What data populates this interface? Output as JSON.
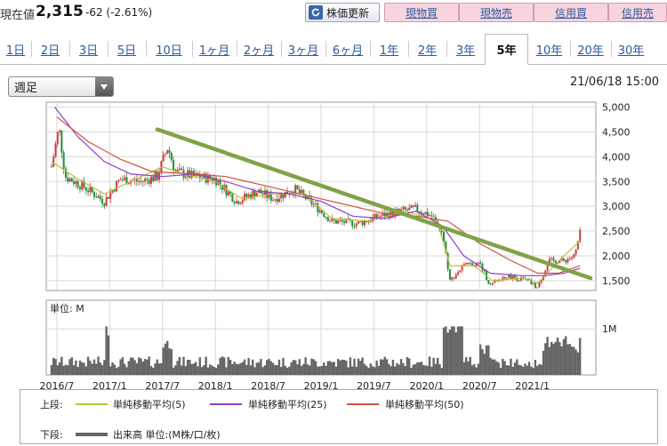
{
  "quote": {
    "label": "現在値",
    "price": "2,315",
    "change": "-62 (-2.61%)"
  },
  "toolbar": {
    "refresh_label": "株価更新",
    "trade_buttons": [
      "現物買",
      "現物売",
      "信用買",
      "信用売"
    ]
  },
  "tabs": [
    {
      "label": "1日",
      "active": false
    },
    {
      "label": "2日",
      "active": false
    },
    {
      "label": "3日",
      "active": false
    },
    {
      "label": "5日",
      "active": false
    },
    {
      "label": "10日",
      "active": false
    },
    {
      "label": "1ヶ月",
      "active": false
    },
    {
      "label": "2ヶ月",
      "active": false
    },
    {
      "label": "3ヶ月",
      "active": false
    },
    {
      "label": "6ヶ月",
      "active": false
    },
    {
      "label": "1年",
      "active": false
    },
    {
      "label": "2年",
      "active": false
    },
    {
      "label": "3年",
      "active": false
    },
    {
      "label": "5年",
      "active": true
    },
    {
      "label": "10年",
      "active": false
    },
    {
      "label": "20年",
      "active": false
    },
    {
      "label": "30年",
      "active": false
    }
  ],
  "controls": {
    "interval_value": "週足",
    "timestamp": "21/06/18 15:00"
  },
  "colors": {
    "trendline": "#7fa348",
    "ma5": "#b7c23a",
    "ma25": "#8e3fc9",
    "ma50": "#d1523c",
    "candle_up": "#d23c3c",
    "candle_down": "#2a8a3c",
    "volume": "#666666",
    "grid": "#d8d8d8"
  },
  "chart_data": {
    "type": "candlestick",
    "price_axis": {
      "ticks": [
        "5,000",
        "4,500",
        "4,000",
        "3,500",
        "3,000",
        "2,500",
        "2,000",
        "1,500"
      ],
      "ylim": [
        1300,
        5100
      ]
    },
    "volume_axis": {
      "unit_label": "単位: M",
      "ticks": [
        "1M"
      ]
    },
    "x_ticks": [
      "2016/7",
      "2017/1",
      "2017/7",
      "2018/1",
      "2018/7",
      "2019/1",
      "2019/7",
      "2020/1",
      "2020/7",
      "2021/1"
    ],
    "price_anchors": [
      [
        2016.45,
        3800
      ],
      [
        2016.52,
        4600
      ],
      [
        2016.58,
        3600
      ],
      [
        2016.75,
        3400
      ],
      [
        2016.95,
        3100
      ],
      [
        2017.1,
        3550
      ],
      [
        2017.3,
        3500
      ],
      [
        2017.45,
        3600
      ],
      [
        2017.55,
        4200
      ],
      [
        2017.62,
        3700
      ],
      [
        2017.8,
        3600
      ],
      [
        2018.0,
        3550
      ],
      [
        2018.2,
        3100
      ],
      [
        2018.4,
        3300
      ],
      [
        2018.55,
        3150
      ],
      [
        2018.75,
        3350
      ],
      [
        2018.95,
        3000
      ],
      [
        2019.1,
        2700
      ],
      [
        2019.35,
        2650
      ],
      [
        2019.55,
        2800
      ],
      [
        2019.75,
        2900
      ],
      [
        2019.9,
        2950
      ],
      [
        2020.05,
        2800
      ],
      [
        2020.15,
        2450
      ],
      [
        2020.22,
        1500
      ],
      [
        2020.35,
        1800
      ],
      [
        2020.5,
        1850
      ],
      [
        2020.6,
        1400
      ],
      [
        2020.75,
        1600
      ],
      [
        2020.95,
        1500
      ],
      [
        2021.05,
        1350
      ],
      [
        2021.15,
        1900
      ],
      [
        2021.3,
        1900
      ],
      [
        2021.4,
        2000
      ],
      [
        2021.45,
        2450
      ]
    ],
    "series": [
      {
        "name": "単純移動平均(5)",
        "points": [
          [
            2016.45,
            3900
          ],
          [
            2016.7,
            3550
          ],
          [
            2016.95,
            3250
          ],
          [
            2017.2,
            3500
          ],
          [
            2017.5,
            3800
          ],
          [
            2017.7,
            3650
          ],
          [
            2018.0,
            3500
          ],
          [
            2018.25,
            3150
          ],
          [
            2018.55,
            3250
          ],
          [
            2018.85,
            3250
          ],
          [
            2019.1,
            2750
          ],
          [
            2019.45,
            2700
          ],
          [
            2019.8,
            2900
          ],
          [
            2020.1,
            2700
          ],
          [
            2020.22,
            1800
          ],
          [
            2020.45,
            1800
          ],
          [
            2020.62,
            1500
          ],
          [
            2020.9,
            1550
          ],
          [
            2021.05,
            1450
          ],
          [
            2021.25,
            1900
          ],
          [
            2021.45,
            2300
          ]
        ]
      },
      {
        "name": "単純移動平均(25)",
        "points": [
          [
            2016.48,
            5000
          ],
          [
            2016.7,
            4400
          ],
          [
            2016.95,
            3900
          ],
          [
            2017.2,
            3650
          ],
          [
            2017.5,
            3600
          ],
          [
            2017.8,
            3650
          ],
          [
            2018.1,
            3500
          ],
          [
            2018.4,
            3300
          ],
          [
            2018.7,
            3250
          ],
          [
            2019.0,
            3100
          ],
          [
            2019.3,
            2800
          ],
          [
            2019.6,
            2750
          ],
          [
            2019.9,
            2900
          ],
          [
            2020.15,
            2600
          ],
          [
            2020.35,
            2000
          ],
          [
            2020.6,
            1650
          ],
          [
            2020.9,
            1600
          ],
          [
            2021.1,
            1600
          ],
          [
            2021.3,
            1650
          ],
          [
            2021.45,
            1750
          ]
        ]
      },
      {
        "name": "単純移動平均(50)",
        "points": [
          [
            2016.5,
            4800
          ],
          [
            2016.8,
            4300
          ],
          [
            2017.1,
            3950
          ],
          [
            2017.4,
            3700
          ],
          [
            2017.8,
            3650
          ],
          [
            2018.1,
            3600
          ],
          [
            2018.4,
            3450
          ],
          [
            2018.7,
            3300
          ],
          [
            2019.0,
            3150
          ],
          [
            2019.3,
            3000
          ],
          [
            2019.6,
            2850
          ],
          [
            2019.9,
            2800
          ],
          [
            2020.2,
            2700
          ],
          [
            2020.5,
            2250
          ],
          [
            2020.8,
            1900
          ],
          [
            2021.05,
            1650
          ],
          [
            2021.25,
            1650
          ],
          [
            2021.45,
            1800
          ]
        ]
      }
    ],
    "trendline": [
      [
        2017.45,
        4550
      ],
      [
        2021.55,
        1550
      ]
    ],
    "legend": {
      "upper_label": "上段:",
      "lower_label": "下段:",
      "items": [
        "単純移動平均(5)",
        "単純移動平均(25)",
        "単純移動平均(50)"
      ],
      "volume_item": "出来高 単位:(M株/口/枚)"
    }
  }
}
